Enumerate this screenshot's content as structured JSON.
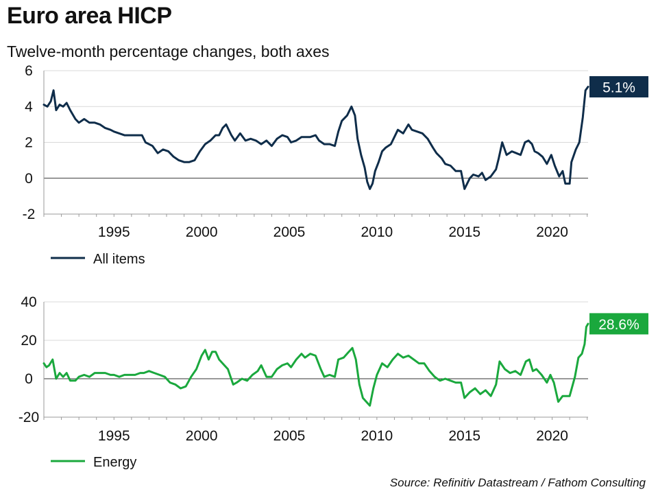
{
  "title": "Euro area HICP",
  "subtitle": "Twelve-month percentage changes, both axes",
  "source": "Source: Refinitiv Datastream / Fathom Consulting",
  "colors": {
    "all_items": "#0f2d4a",
    "energy": "#1aa83d"
  },
  "chart_data": [
    {
      "type": "line",
      "ylim": [
        -2,
        6
      ],
      "yticks": [
        -2,
        0,
        2,
        4,
        6
      ],
      "xlim": [
        1991.0,
        2022.05
      ],
      "xticks": [
        1995,
        2000,
        2005,
        2010,
        2015,
        2020
      ],
      "grid": "horizontal",
      "legend": "bottom-left",
      "series": [
        {
          "name": "All items",
          "color": "#0f2d4a",
          "end_label": "5.1%",
          "points": [
            [
              1991.0,
              4.1
            ],
            [
              1991.2,
              4.0
            ],
            [
              1991.4,
              4.3
            ],
            [
              1991.55,
              4.9
            ],
            [
              1991.7,
              3.8
            ],
            [
              1991.9,
              4.1
            ],
            [
              1992.1,
              4.0
            ],
            [
              1992.3,
              4.2
            ],
            [
              1992.5,
              3.8
            ],
            [
              1992.8,
              3.3
            ],
            [
              1993.0,
              3.1
            ],
            [
              1993.3,
              3.3
            ],
            [
              1993.6,
              3.1
            ],
            [
              1993.9,
              3.1
            ],
            [
              1994.2,
              3.0
            ],
            [
              1994.5,
              2.8
            ],
            [
              1994.8,
              2.7
            ],
            [
              1995.0,
              2.6
            ],
            [
              1995.3,
              2.5
            ],
            [
              1995.6,
              2.4
            ],
            [
              1995.9,
              2.4
            ],
            [
              1996.3,
              2.4
            ],
            [
              1996.6,
              2.4
            ],
            [
              1996.8,
              2.0
            ],
            [
              1997.2,
              1.8
            ],
            [
              1997.5,
              1.4
            ],
            [
              1997.8,
              1.6
            ],
            [
              1998.1,
              1.5
            ],
            [
              1998.4,
              1.2
            ],
            [
              1998.7,
              1.0
            ],
            [
              1999.0,
              0.9
            ],
            [
              1999.3,
              0.9
            ],
            [
              1999.6,
              1.0
            ],
            [
              1999.9,
              1.5
            ],
            [
              2000.2,
              1.9
            ],
            [
              2000.5,
              2.1
            ],
            [
              2000.8,
              2.4
            ],
            [
              2001.0,
              2.4
            ],
            [
              2001.2,
              2.8
            ],
            [
              2001.4,
              3.0
            ],
            [
              2001.7,
              2.4
            ],
            [
              2001.9,
              2.1
            ],
            [
              2002.2,
              2.5
            ],
            [
              2002.5,
              2.1
            ],
            [
              2002.8,
              2.2
            ],
            [
              2003.1,
              2.1
            ],
            [
              2003.4,
              1.9
            ],
            [
              2003.7,
              2.1
            ],
            [
              2004.0,
              1.8
            ],
            [
              2004.3,
              2.2
            ],
            [
              2004.6,
              2.4
            ],
            [
              2004.9,
              2.3
            ],
            [
              2005.1,
              2.0
            ],
            [
              2005.4,
              2.1
            ],
            [
              2005.7,
              2.3
            ],
            [
              2005.9,
              2.3
            ],
            [
              2006.2,
              2.3
            ],
            [
              2006.5,
              2.4
            ],
            [
              2006.7,
              2.1
            ],
            [
              2007.0,
              1.9
            ],
            [
              2007.3,
              1.9
            ],
            [
              2007.6,
              1.8
            ],
            [
              2007.8,
              2.6
            ],
            [
              2008.0,
              3.2
            ],
            [
              2008.3,
              3.5
            ],
            [
              2008.55,
              4.0
            ],
            [
              2008.75,
              3.5
            ],
            [
              2008.9,
              2.2
            ],
            [
              2009.1,
              1.3
            ],
            [
              2009.3,
              0.6
            ],
            [
              2009.45,
              -0.2
            ],
            [
              2009.6,
              -0.6
            ],
            [
              2009.75,
              -0.3
            ],
            [
              2009.9,
              0.4
            ],
            [
              2010.1,
              0.9
            ],
            [
              2010.3,
              1.5
            ],
            [
              2010.5,
              1.7
            ],
            [
              2010.8,
              1.9
            ],
            [
              2011.0,
              2.3
            ],
            [
              2011.2,
              2.7
            ],
            [
              2011.5,
              2.5
            ],
            [
              2011.8,
              3.0
            ],
            [
              2012.0,
              2.7
            ],
            [
              2012.3,
              2.6
            ],
            [
              2012.6,
              2.5
            ],
            [
              2012.9,
              2.2
            ],
            [
              2013.2,
              1.7
            ],
            [
              2013.4,
              1.4
            ],
            [
              2013.7,
              1.1
            ],
            [
              2013.9,
              0.8
            ],
            [
              2014.2,
              0.7
            ],
            [
              2014.5,
              0.4
            ],
            [
              2014.8,
              0.4
            ],
            [
              2015.0,
              -0.6
            ],
            [
              2015.3,
              0.0
            ],
            [
              2015.5,
              0.2
            ],
            [
              2015.8,
              0.1
            ],
            [
              2016.0,
              0.3
            ],
            [
              2016.2,
              -0.1
            ],
            [
              2016.5,
              0.1
            ],
            [
              2016.8,
              0.5
            ],
            [
              2016.95,
              1.1
            ],
            [
              2017.15,
              2.0
            ],
            [
              2017.4,
              1.3
            ],
            [
              2017.7,
              1.5
            ],
            [
              2017.95,
              1.4
            ],
            [
              2018.2,
              1.3
            ],
            [
              2018.45,
              2.0
            ],
            [
              2018.65,
              2.1
            ],
            [
              2018.85,
              1.9
            ],
            [
              2019.0,
              1.5
            ],
            [
              2019.2,
              1.4
            ],
            [
              2019.45,
              1.2
            ],
            [
              2019.7,
              0.8
            ],
            [
              2019.95,
              1.3
            ],
            [
              2020.15,
              0.7
            ],
            [
              2020.4,
              0.1
            ],
            [
              2020.6,
              0.4
            ],
            [
              2020.75,
              -0.3
            ],
            [
              2021.0,
              -0.3
            ],
            [
              2021.1,
              0.9
            ],
            [
              2021.35,
              1.6
            ],
            [
              2021.55,
              2.0
            ],
            [
              2021.75,
              3.4
            ],
            [
              2021.9,
              4.9
            ],
            [
              2022.05,
              5.1
            ]
          ]
        }
      ]
    },
    {
      "type": "line",
      "ylim": [
        -20,
        40
      ],
      "yticks": [
        -20,
        0,
        20,
        40
      ],
      "xlim": [
        1991.0,
        2022.05
      ],
      "xticks": [
        1995,
        2000,
        2005,
        2010,
        2015,
        2020
      ],
      "grid": "horizontal",
      "legend": "bottom-left",
      "series": [
        {
          "name": "Energy",
          "color": "#1aa83d",
          "end_label": "28.6%",
          "points": [
            [
              1991.0,
              8
            ],
            [
              1991.15,
              6
            ],
            [
              1991.3,
              7
            ],
            [
              1991.5,
              10
            ],
            [
              1991.7,
              0
            ],
            [
              1991.9,
              3
            ],
            [
              1992.1,
              1
            ],
            [
              1992.3,
              3
            ],
            [
              1992.5,
              -1
            ],
            [
              1992.8,
              -1
            ],
            [
              1993.0,
              1
            ],
            [
              1993.3,
              2
            ],
            [
              1993.6,
              1
            ],
            [
              1993.9,
              3
            ],
            [
              1994.2,
              3
            ],
            [
              1994.5,
              3
            ],
            [
              1994.8,
              2
            ],
            [
              1995.0,
              2
            ],
            [
              1995.3,
              1
            ],
            [
              1995.6,
              2
            ],
            [
              1995.9,
              2
            ],
            [
              1996.2,
              2
            ],
            [
              1996.5,
              3
            ],
            [
              1996.7,
              3
            ],
            [
              1997.0,
              4
            ],
            [
              1997.3,
              3
            ],
            [
              1997.6,
              2
            ],
            [
              1997.9,
              1
            ],
            [
              1998.2,
              -2
            ],
            [
              1998.5,
              -3
            ],
            [
              1998.8,
              -5
            ],
            [
              1999.1,
              -4
            ],
            [
              1999.4,
              1
            ],
            [
              1999.7,
              5
            ],
            [
              2000.0,
              12
            ],
            [
              2000.2,
              15
            ],
            [
              2000.4,
              10
            ],
            [
              2000.6,
              14
            ],
            [
              2000.8,
              14
            ],
            [
              2001.0,
              10
            ],
            [
              2001.2,
              8
            ],
            [
              2001.5,
              5
            ],
            [
              2001.8,
              -3
            ],
            [
              2002.0,
              -2
            ],
            [
              2002.3,
              0
            ],
            [
              2002.6,
              -1
            ],
            [
              2002.9,
              2
            ],
            [
              2003.2,
              4
            ],
            [
              2003.4,
              7
            ],
            [
              2003.7,
              1
            ],
            [
              2004.0,
              1
            ],
            [
              2004.3,
              5
            ],
            [
              2004.6,
              7
            ],
            [
              2004.9,
              8
            ],
            [
              2005.1,
              6
            ],
            [
              2005.4,
              10
            ],
            [
              2005.7,
              13
            ],
            [
              2005.9,
              11
            ],
            [
              2006.2,
              13
            ],
            [
              2006.5,
              12
            ],
            [
              2006.8,
              5
            ],
            [
              2007.0,
              1
            ],
            [
              2007.3,
              2
            ],
            [
              2007.6,
              1
            ],
            [
              2007.8,
              10
            ],
            [
              2008.1,
              11
            ],
            [
              2008.4,
              14
            ],
            [
              2008.6,
              16
            ],
            [
              2008.8,
              10
            ],
            [
              2009.0,
              -3
            ],
            [
              2009.2,
              -10
            ],
            [
              2009.4,
              -12
            ],
            [
              2009.6,
              -14
            ],
            [
              2009.8,
              -5
            ],
            [
              2010.0,
              2
            ],
            [
              2010.3,
              8
            ],
            [
              2010.6,
              6
            ],
            [
              2010.9,
              10
            ],
            [
              2011.2,
              13
            ],
            [
              2011.5,
              11
            ],
            [
              2011.8,
              12
            ],
            [
              2012.1,
              10
            ],
            [
              2012.4,
              8
            ],
            [
              2012.7,
              8
            ],
            [
              2013.0,
              4
            ],
            [
              2013.3,
              1
            ],
            [
              2013.6,
              -1
            ],
            [
              2013.9,
              0
            ],
            [
              2014.2,
              -1
            ],
            [
              2014.5,
              -2
            ],
            [
              2014.8,
              -2
            ],
            [
              2015.0,
              -10
            ],
            [
              2015.3,
              -7
            ],
            [
              2015.6,
              -5
            ],
            [
              2015.9,
              -8
            ],
            [
              2016.2,
              -6
            ],
            [
              2016.5,
              -9
            ],
            [
              2016.8,
              -3
            ],
            [
              2017.0,
              9
            ],
            [
              2017.3,
              5
            ],
            [
              2017.6,
              3
            ],
            [
              2017.9,
              4
            ],
            [
              2018.2,
              2
            ],
            [
              2018.5,
              9
            ],
            [
              2018.7,
              10
            ],
            [
              2018.9,
              4
            ],
            [
              2019.1,
              5
            ],
            [
              2019.4,
              2
            ],
            [
              2019.7,
              -2
            ],
            [
              2019.9,
              2
            ],
            [
              2020.1,
              -2
            ],
            [
              2020.35,
              -12
            ],
            [
              2020.6,
              -9
            ],
            [
              2021.0,
              -9
            ],
            [
              2021.3,
              1
            ],
            [
              2021.5,
              11
            ],
            [
              2021.7,
              13
            ],
            [
              2021.85,
              18
            ],
            [
              2021.95,
              27
            ],
            [
              2022.05,
              28.6
            ]
          ]
        }
      ]
    }
  ]
}
